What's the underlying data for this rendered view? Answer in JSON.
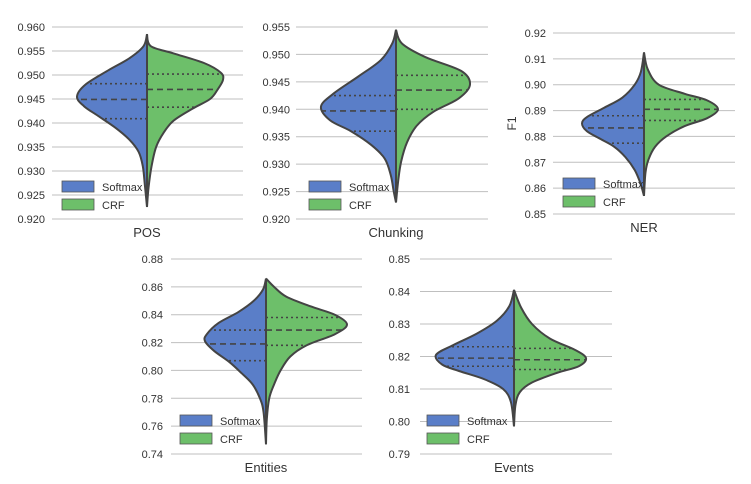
{
  "chart_data": [
    {
      "type": "violin",
      "title": "",
      "xlabel": "POS",
      "ylabel": "",
      "ylim": [
        0.92,
        0.96
      ],
      "ticks": [
        "0.960",
        "0.955",
        "0.950",
        "0.945",
        "0.940",
        "0.935",
        "0.930",
        "0.925",
        "0.920"
      ],
      "legend": [
        "Softmax",
        "CRF"
      ],
      "legend_position": "bottom-left",
      "series": [
        {
          "name": "Softmax",
          "quartiles": [
            0.9409,
            0.9449,
            0.9482
          ],
          "density": [
            [
              0.9585,
              0
            ],
            [
              0.956,
              0.05
            ],
            [
              0.9535,
              0.25
            ],
            [
              0.951,
              0.55
            ],
            [
              0.948,
              0.88
            ],
            [
              0.9455,
              1.0
            ],
            [
              0.9435,
              0.9
            ],
            [
              0.9415,
              0.7
            ],
            [
              0.939,
              0.45
            ],
            [
              0.9365,
              0.25
            ],
            [
              0.934,
              0.12
            ],
            [
              0.931,
              0.06
            ],
            [
              0.927,
              0.03
            ],
            [
              0.9225,
              0
            ]
          ]
        },
        {
          "name": "CRF",
          "quartiles": [
            0.9433,
            0.947,
            0.9502
          ],
          "density": [
            [
              0.9585,
              0
            ],
            [
              0.956,
              0.05
            ],
            [
              0.9545,
              0.35
            ],
            [
              0.9525,
              0.75
            ],
            [
              0.9505,
              0.97
            ],
            [
              0.949,
              1.0
            ],
            [
              0.947,
              0.93
            ],
            [
              0.945,
              0.83
            ],
            [
              0.943,
              0.6
            ],
            [
              0.9405,
              0.35
            ],
            [
              0.938,
              0.22
            ],
            [
              0.935,
              0.12
            ],
            [
              0.931,
              0.06
            ],
            [
              0.9265,
              0.02
            ],
            [
              0.9225,
              0
            ]
          ]
        }
      ]
    },
    {
      "type": "violin",
      "title": "",
      "xlabel": "Chunking",
      "ylabel": "",
      "ylim": [
        0.92,
        0.955
      ],
      "ticks": [
        "0.955",
        "0.950",
        "0.945",
        "0.940",
        "0.935",
        "0.930",
        "0.925",
        "0.920"
      ],
      "legend": [
        "Softmax",
        "CRF"
      ],
      "legend_position": "bottom-left",
      "series": [
        {
          "name": "Softmax",
          "quartiles": [
            0.936,
            0.9397,
            0.9425
          ],
          "density": [
            [
              0.9545,
              0
            ],
            [
              0.952,
              0.05
            ],
            [
              0.949,
              0.2
            ],
            [
              0.946,
              0.5
            ],
            [
              0.943,
              0.82
            ],
            [
              0.9405,
              1.0
            ],
            [
              0.938,
              0.88
            ],
            [
              0.936,
              0.6
            ],
            [
              0.9335,
              0.33
            ],
            [
              0.931,
              0.15
            ],
            [
              0.928,
              0.07
            ],
            [
              0.925,
              0.03
            ],
            [
              0.923,
              0
            ]
          ]
        },
        {
          "name": "CRF",
          "quartiles": [
            0.94,
            0.9435,
            0.9462
          ],
          "density": [
            [
              0.9545,
              0
            ],
            [
              0.952,
              0.08
            ],
            [
              0.9495,
              0.4
            ],
            [
              0.947,
              0.88
            ],
            [
              0.9445,
              1.0
            ],
            [
              0.942,
              0.85
            ],
            [
              0.9395,
              0.5
            ],
            [
              0.937,
              0.28
            ],
            [
              0.934,
              0.15
            ],
            [
              0.9305,
              0.07
            ],
            [
              0.927,
              0.03
            ],
            [
              0.923,
              0
            ]
          ]
        }
      ]
    },
    {
      "type": "violin",
      "title": "",
      "xlabel": "NER",
      "ylabel": "F1",
      "ylim": [
        0.85,
        0.92
      ],
      "ticks": [
        "0.92",
        "0.91",
        "0.90",
        "0.89",
        "0.88",
        "0.87",
        "0.86",
        "0.85"
      ],
      "legend": [
        "Softmax",
        "CRF"
      ],
      "legend_position": "bottom-left",
      "series": [
        {
          "name": "Softmax",
          "quartiles": [
            0.8774,
            0.8833,
            0.888
          ],
          "density": [
            [
              0.9125,
              0
            ],
            [
              0.905,
              0.05
            ],
            [
              0.9,
              0.15
            ],
            [
              0.895,
              0.35
            ],
            [
              0.891,
              0.65
            ],
            [
              0.8875,
              0.92
            ],
            [
              0.885,
              1.0
            ],
            [
              0.882,
              0.92
            ],
            [
              0.879,
              0.7
            ],
            [
              0.876,
              0.48
            ],
            [
              0.872,
              0.3
            ],
            [
              0.867,
              0.15
            ],
            [
              0.862,
              0.06
            ],
            [
              0.857,
              0
            ]
          ]
        },
        {
          "name": "CRF",
          "quartiles": [
            0.8862,
            0.8905,
            0.8943
          ],
          "density": [
            [
              0.9125,
              0
            ],
            [
              0.906,
              0.05
            ],
            [
              0.9,
              0.2
            ],
            [
              0.8965,
              0.55
            ],
            [
              0.894,
              0.85
            ],
            [
              0.8905,
              1.0
            ],
            [
              0.887,
              0.85
            ],
            [
              0.884,
              0.55
            ],
            [
              0.88,
              0.3
            ],
            [
              0.876,
              0.15
            ],
            [
              0.871,
              0.06
            ],
            [
              0.866,
              0.02
            ],
            [
              0.857,
              0
            ]
          ]
        }
      ]
    },
    {
      "type": "violin",
      "title": "",
      "xlabel": "Entities",
      "ylabel": "",
      "ylim": [
        0.74,
        0.88
      ],
      "ticks": [
        "0.88",
        "0.86",
        "0.84",
        "0.82",
        "0.80",
        "0.78",
        "0.76",
        "0.74"
      ],
      "legend": [
        "Softmax",
        "CRF"
      ],
      "legend_position": "bottom-left",
      "series": [
        {
          "name": "Softmax",
          "quartiles": [
            0.807,
            0.819,
            0.829
          ],
          "density": [
            [
              0.866,
              0
            ],
            [
              0.858,
              0.05
            ],
            [
              0.85,
              0.2
            ],
            [
              0.842,
              0.45
            ],
            [
              0.834,
              0.78
            ],
            [
              0.826,
              0.97
            ],
            [
              0.821,
              1.0
            ],
            [
              0.814,
              0.85
            ],
            [
              0.806,
              0.6
            ],
            [
              0.798,
              0.4
            ],
            [
              0.79,
              0.22
            ],
            [
              0.78,
              0.1
            ],
            [
              0.77,
              0.04
            ],
            [
              0.747,
              0
            ]
          ]
        },
        {
          "name": "CRF",
          "quartiles": [
            0.818,
            0.829,
            0.838
          ],
          "density": [
            [
              0.866,
              0
            ],
            [
              0.86,
              0.1
            ],
            [
              0.853,
              0.25
            ],
            [
              0.846,
              0.55
            ],
            [
              0.84,
              0.85
            ],
            [
              0.833,
              1.0
            ],
            [
              0.826,
              0.85
            ],
            [
              0.818,
              0.5
            ],
            [
              0.81,
              0.3
            ],
            [
              0.8,
              0.18
            ],
            [
              0.79,
              0.1
            ],
            [
              0.78,
              0.04
            ],
            [
              0.765,
              0.01
            ],
            [
              0.747,
              0
            ]
          ]
        }
      ]
    },
    {
      "type": "violin",
      "title": "",
      "xlabel": "Events",
      "ylabel": "",
      "ylim": [
        0.79,
        0.85
      ],
      "ticks": [
        "0.85",
        "0.84",
        "0.83",
        "0.82",
        "0.81",
        "0.80",
        "0.79"
      ],
      "legend": [
        "Softmax",
        "CRF"
      ],
      "legend_position": "bottom-left",
      "series": [
        {
          "name": "Softmax",
          "quartiles": [
            0.817,
            0.8195,
            0.823
          ],
          "density": [
            [
              0.8405,
              0
            ],
            [
              0.8355,
              0.06
            ],
            [
              0.831,
              0.22
            ],
            [
              0.827,
              0.48
            ],
            [
              0.8235,
              0.78
            ],
            [
              0.8205,
              1.0
            ],
            [
              0.8175,
              0.92
            ],
            [
              0.8155,
              0.7
            ],
            [
              0.813,
              0.38
            ],
            [
              0.81,
              0.14
            ],
            [
              0.806,
              0.04
            ],
            [
              0.7985,
              0
            ]
          ]
        },
        {
          "name": "CRF",
          "quartiles": [
            0.816,
            0.819,
            0.8225
          ],
          "density": [
            [
              0.8405,
              0
            ],
            [
              0.835,
              0.1
            ],
            [
              0.83,
              0.25
            ],
            [
              0.8255,
              0.5
            ],
            [
              0.822,
              0.85
            ],
            [
              0.8195,
              1.0
            ],
            [
              0.817,
              0.9
            ],
            [
              0.815,
              0.6
            ],
            [
              0.812,
              0.25
            ],
            [
              0.809,
              0.08
            ],
            [
              0.805,
              0.02
            ],
            [
              0.7985,
              0
            ]
          ]
        }
      ]
    }
  ],
  "colors": {
    "Softmax": "#5a7ec8",
    "CRF": "#6dbf6a",
    "outline": "#444444",
    "grid": "#bfbfbf"
  }
}
